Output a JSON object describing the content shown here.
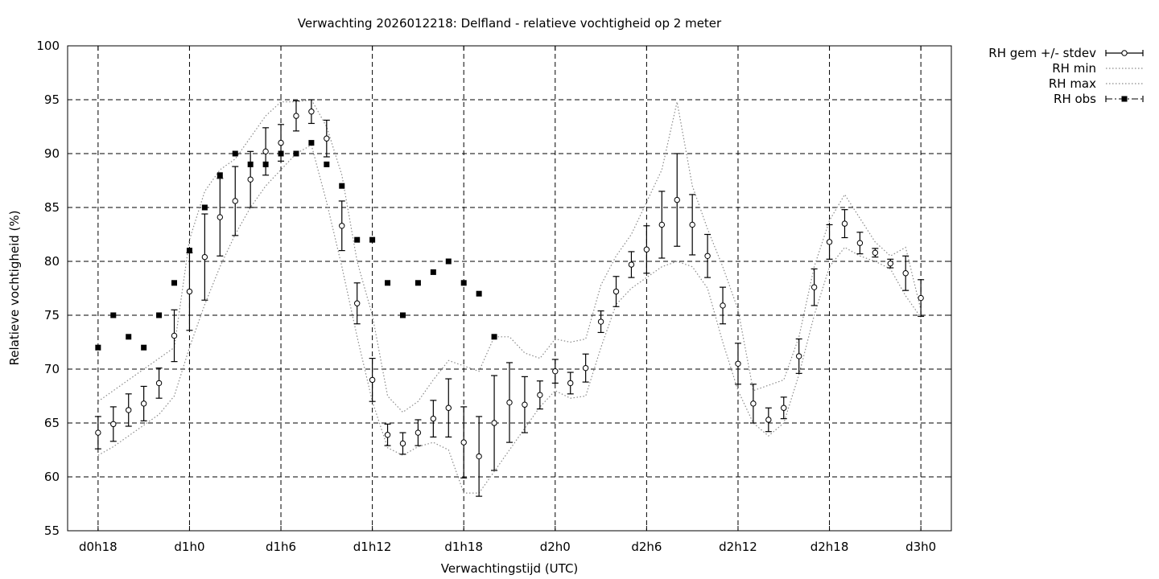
{
  "chart_data": {
    "type": "line",
    "title": "Verwachting 2026012218: Delfland - relatieve vochtigheid op 2 meter",
    "xlabel": "Verwachtingstijd (UTC)",
    "ylabel": "Relatieve vochtigheid (%)",
    "ylim": [
      55,
      100
    ],
    "xlim_hours": [
      -2,
      56
    ],
    "y_ticks": [
      55,
      60,
      65,
      70,
      75,
      80,
      85,
      90,
      95,
      100
    ],
    "x_ticks": [
      {
        "hour": 0,
        "label": "d0h18"
      },
      {
        "hour": 6,
        "label": "d1h0"
      },
      {
        "hour": 12,
        "label": "d1h6"
      },
      {
        "hour": 18,
        "label": "d1h12"
      },
      {
        "hour": 24,
        "label": "d1h18"
      },
      {
        "hour": 30,
        "label": "d2h0"
      },
      {
        "hour": 36,
        "label": "d2h6"
      },
      {
        "hour": 42,
        "label": "d2h12"
      },
      {
        "hour": 48,
        "label": "d2h18"
      },
      {
        "hour": 54,
        "label": "d3h0"
      }
    ],
    "grid": true,
    "legend_position": "outside-top-right",
    "legend": [
      {
        "label": "RH gem +/- stdev",
        "style": "errorbar-circle"
      },
      {
        "label": "RH min",
        "style": "dotted"
      },
      {
        "label": "RH max",
        "style": "dotted"
      },
      {
        "label": "RH obs",
        "style": "dashdot-square"
      }
    ],
    "hours": [
      0,
      1,
      2,
      3,
      4,
      5,
      6,
      7,
      8,
      9,
      10,
      11,
      12,
      13,
      14,
      15,
      16,
      17,
      18,
      19,
      20,
      21,
      22,
      23,
      24,
      25,
      26,
      27,
      28,
      29,
      30,
      31,
      32,
      33,
      34,
      35,
      36,
      37,
      38,
      39,
      40,
      41,
      42,
      43,
      44,
      45,
      46,
      47,
      48,
      49,
      50,
      51,
      52,
      53,
      54
    ],
    "series": [
      {
        "name": "RH gem +/- stdev",
        "mean": [
          64.1,
          64.9,
          66.2,
          66.8,
          68.7,
          73.1,
          77.2,
          80.4,
          84.1,
          85.6,
          87.6,
          90.2,
          91.0,
          93.5,
          93.9,
          91.4,
          83.3,
          76.1,
          69.0,
          63.9,
          63.1,
          64.1,
          65.4,
          66.4,
          63.2,
          61.9,
          65.0,
          66.9,
          66.7,
          67.6,
          69.8,
          68.7,
          70.1,
          74.4,
          77.2,
          79.7,
          81.1,
          83.4,
          85.7,
          83.4,
          80.5,
          75.9,
          70.5,
          66.8,
          65.3,
          66.4,
          71.2,
          77.6,
          81.8,
          83.5,
          81.7,
          80.8,
          79.8,
          78.9,
          76.6
        ],
        "stdev": [
          1.5,
          1.6,
          1.5,
          1.6,
          1.4,
          2.4,
          3.6,
          4.0,
          3.6,
          3.2,
          2.6,
          2.2,
          1.7,
          1.4,
          1.1,
          1.7,
          2.3,
          1.9,
          2.0,
          1.0,
          1.0,
          1.2,
          1.7,
          2.7,
          3.3,
          3.7,
          4.4,
          3.7,
          2.6,
          1.3,
          1.1,
          1.0,
          1.3,
          1.0,
          1.4,
          1.2,
          2.2,
          3.1,
          4.3,
          2.8,
          2.0,
          1.7,
          1.9,
          1.8,
          1.1,
          1.0,
          1.6,
          1.7,
          1.6,
          1.3,
          1.0,
          0.4,
          0.4,
          1.6,
          1.7
        ]
      },
      {
        "name": "RH min",
        "values": [
          62.0,
          62.8,
          63.8,
          64.8,
          65.8,
          67.5,
          72.0,
          76.0,
          79.5,
          82.5,
          85.0,
          87.0,
          88.5,
          90.0,
          90.8,
          85.5,
          79.5,
          73.0,
          67.0,
          62.7,
          62.0,
          62.8,
          63.2,
          62.5,
          58.5,
          58.5,
          60.5,
          62.5,
          64.5,
          66.5,
          68.0,
          67.3,
          67.5,
          72.0,
          76.0,
          77.5,
          78.5,
          79.5,
          80.0,
          79.5,
          77.5,
          72.5,
          68.0,
          65.0,
          63.8,
          65.0,
          69.5,
          75.0,
          79.5,
          81.3,
          80.5,
          80.0,
          79.3,
          76.8,
          74.8
        ]
      },
      {
        "name": "RH max",
        "values": [
          67.0,
          68.0,
          69.0,
          70.0,
          71.0,
          72.0,
          82.0,
          86.5,
          88.5,
          89.5,
          91.5,
          93.5,
          94.8,
          94.8,
          95.0,
          92.5,
          88.0,
          80.0,
          75.0,
          67.5,
          66.0,
          67.0,
          69.0,
          70.8,
          70.3,
          69.8,
          73.0,
          73.0,
          71.5,
          71.0,
          72.8,
          72.5,
          72.8,
          77.8,
          80.5,
          82.5,
          85.5,
          88.5,
          94.8,
          87.0,
          83.0,
          79.5,
          75.5,
          68.0,
          68.5,
          69.0,
          73.0,
          79.5,
          83.8,
          86.2,
          84.0,
          81.8,
          80.5,
          81.3,
          75.5
        ]
      },
      {
        "name": "RH obs",
        "hours": [
          0,
          1,
          2,
          3,
          4,
          5,
          6,
          7,
          8,
          9,
          10,
          11,
          12,
          13,
          14,
          15,
          16,
          17,
          18,
          19,
          20,
          21,
          22,
          23,
          24,
          25,
          26
        ],
        "values": [
          72,
          75,
          73,
          72,
          75,
          78,
          81,
          85,
          88,
          90,
          89,
          89,
          90,
          90,
          91,
          89,
          87,
          82,
          82,
          78,
          75,
          78,
          79,
          80,
          78,
          77,
          73
        ]
      }
    ]
  }
}
